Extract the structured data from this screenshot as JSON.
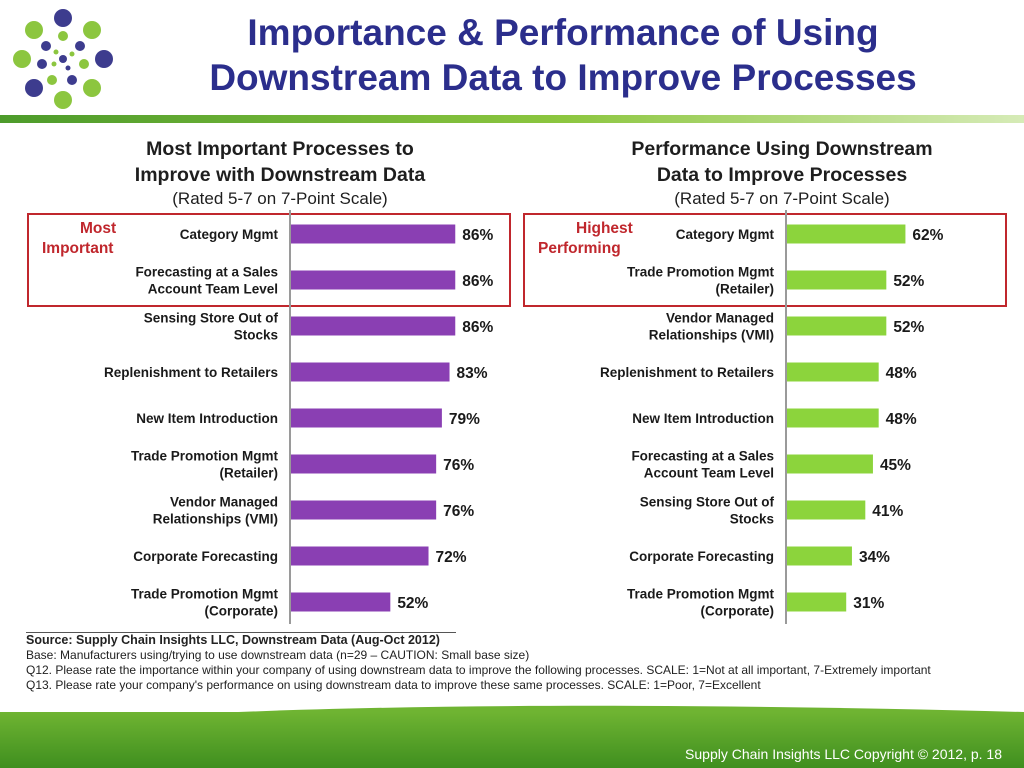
{
  "header": {
    "title_line1": "Importance & Performance of Using",
    "title_line2": "Downstream Data to Improve Processes"
  },
  "colors": {
    "title": "#2b2e8c",
    "importance_bar": "#8a3fb3",
    "performance_bar": "#8cd43c",
    "highlight_box": "#c0272d",
    "highlight_label": "#c0272d",
    "footer": "#4e9e24"
  },
  "left_panel": {
    "title_line1": "Most Important Processes to",
    "title_line2": "Improve with Downstream Data",
    "subtitle": "(Rated 5-7 on 7-Point Scale)",
    "highlight_label": [
      "Most",
      "Important"
    ]
  },
  "right_panel": {
    "title_line1": "Performance Using Downstream",
    "title_line2": "Data to Improve Processes",
    "subtitle": "(Rated 5-7 on 7-Point Scale)",
    "highlight_label": [
      "Highest",
      "Performing"
    ]
  },
  "chart_data": [
    {
      "type": "bar",
      "orientation": "horizontal",
      "title": "Most Important Processes to Improve with Downstream Data",
      "subtitle": "(Rated 5-7 on 7-Point Scale)",
      "unit": "%",
      "xlim": [
        0,
        100
      ],
      "highlight_top_n": 2,
      "categories": [
        [
          "Category Mgmt"
        ],
        [
          "Forecasting at a Sales",
          "Account Team Level"
        ],
        [
          "Sensing Store Out of",
          "Stocks"
        ],
        [
          "Replenishment to Retailers"
        ],
        [
          "New Item Introduction"
        ],
        [
          "Trade Promotion Mgmt",
          "(Retailer)"
        ],
        [
          "Vendor Managed",
          "Relationships (VMI)"
        ],
        [
          "Corporate Forecasting"
        ],
        [
          "Trade Promotion Mgmt",
          "(Corporate)"
        ]
      ],
      "values": [
        86,
        86,
        86,
        83,
        79,
        76,
        76,
        72,
        52
      ]
    },
    {
      "type": "bar",
      "orientation": "horizontal",
      "title": "Performance Using Downstream Data to Improve Processes",
      "subtitle": "(Rated 5-7 on 7-Point Scale)",
      "unit": "%",
      "xlim": [
        0,
        100
      ],
      "highlight_top_n": 2,
      "categories": [
        [
          "Category Mgmt"
        ],
        [
          "Trade Promotion Mgmt",
          "(Retailer)"
        ],
        [
          "Vendor Managed",
          "Relationships (VMI)"
        ],
        [
          "Replenishment to Retailers"
        ],
        [
          "New Item Introduction"
        ],
        [
          "Forecasting at a Sales",
          "Account Team Level"
        ],
        [
          "Sensing Store Out of",
          "Stocks"
        ],
        [
          "Corporate Forecasting"
        ],
        [
          "Trade Promotion Mgmt",
          "(Corporate)"
        ]
      ],
      "values": [
        62,
        52,
        52,
        48,
        48,
        45,
        41,
        34,
        31
      ]
    }
  ],
  "footnotes": {
    "source": "Source:  Supply Chain Insights LLC, Downstream Data (Aug-Oct 2012)",
    "base": "Base:  Manufacturers using/trying to use downstream data (n=29 – CAUTION: Small base size)",
    "q12": "Q12. Please rate the importance within your company of using downstream data to improve the following processes. SCALE:  1=Not at all important, 7-Extremely important",
    "q13": "Q13. Please rate your company's performance on using downstream data to improve these same processes.  SCALE:  1=Poor, 7=Excellent"
  },
  "footer": {
    "copyright": "Supply Chain Insights LLC Copyright © 2012, p. 18"
  }
}
